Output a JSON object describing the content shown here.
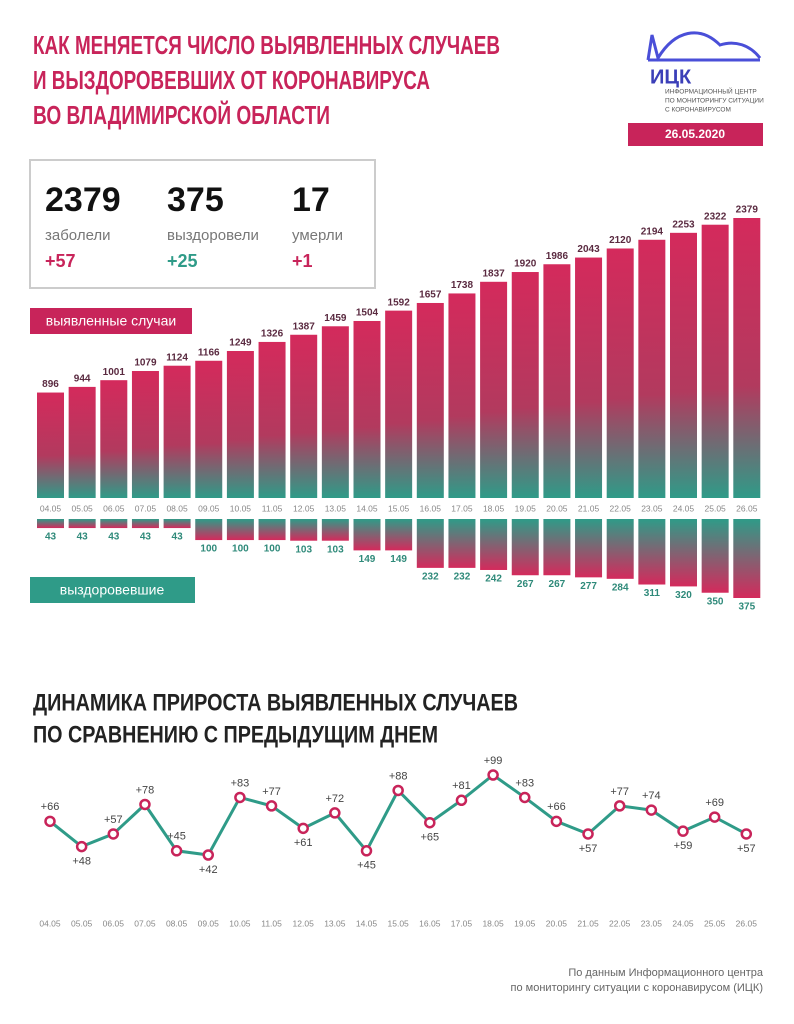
{
  "header": {
    "title": [
      "КАК МЕНЯЕТСЯ ЧИСЛО ВЫЯВЛЕННЫХ СЛУЧАЕВ",
      "И ВЫЗДОРОВЕВШИХ ОТ КОРОНАВИРУСА",
      "ВО ВЛАДИМИРСКОЙ ОБЛАСТИ"
    ],
    "logo": "ИЦК",
    "logo_subtitle": [
      "ИНФОРМАЦИОННЫЙ ЦЕНТР",
      "ПО МОНИТОРИНГУ СИТУАЦИИ",
      "С КОРОНАВИРУСОМ"
    ],
    "date": "26.05.2020"
  },
  "stats": [
    {
      "value": 2379,
      "label": "заболели",
      "change": "+57"
    },
    {
      "value": 375,
      "label": "выздоровели",
      "change": "+25"
    },
    {
      "value": 17,
      "label": "умерли",
      "change": "+1"
    }
  ],
  "chart_data": [
    {
      "type": "bar",
      "categories": [
        "04.05",
        "05.05",
        "06.05",
        "07.05",
        "08.05",
        "09.05",
        "10.05",
        "11.05",
        "12.05",
        "13.05",
        "14.05",
        "15.05",
        "16.05",
        "17.05",
        "18.05",
        "19.05",
        "20.05",
        "21.05",
        "22.05",
        "23.05",
        "24.05",
        "25.05",
        "26.05"
      ],
      "series": [
        {
          "name": "выявленные случаи",
          "values": [
            896,
            944,
            1001,
            1079,
            1124,
            1166,
            1249,
            1326,
            1387,
            1459,
            1504,
            1592,
            1657,
            1738,
            1837,
            1920,
            1986,
            2043,
            2120,
            2194,
            2253,
            2322,
            2379
          ]
        },
        {
          "name": "выздоровевшие",
          "values": [
            43,
            43,
            43,
            43,
            43,
            100,
            100,
            100,
            103,
            103,
            149,
            149,
            232,
            232,
            242,
            267,
            267,
            277,
            284,
            311,
            320,
            350,
            375
          ]
        }
      ]
    },
    {
      "type": "line",
      "title": [
        "ДИНАМИКА ПРИРОСТА ВЫЯВЛЕННЫХ СЛУЧАЕВ",
        "ПО СРАВНЕНИЮ С ПРЕДЫДУЩИМ ДНЕМ"
      ],
      "categories": [
        "04.05",
        "05.05",
        "06.05",
        "07.05",
        "08.05",
        "09.05",
        "10.05",
        "11.05",
        "12.05",
        "13.05",
        "14.05",
        "15.05",
        "16.05",
        "17.05",
        "18.05",
        "19.05",
        "20.05",
        "21.05",
        "22.05",
        "23.05",
        "24.05",
        "25.05",
        "26.05"
      ],
      "values": [
        66,
        48,
        57,
        78,
        45,
        42,
        83,
        77,
        61,
        72,
        45,
        88,
        65,
        81,
        99,
        83,
        66,
        57,
        77,
        74,
        59,
        69,
        57
      ],
      "value_labels": [
        "+66",
        "+48",
        "+57",
        "+78",
        "+45",
        "+42",
        "+83",
        "+77",
        "+61",
        "+72",
        "+45",
        "+88",
        "+65",
        "+81",
        "+99",
        "+83",
        "+66",
        "+57",
        "+77",
        "+74",
        "+59",
        "+69",
        "+57"
      ]
    }
  ],
  "footer": [
    "По данным Информационного центра",
    "по мониторингу ситуации с коронавирусом (ИЦК)"
  ]
}
